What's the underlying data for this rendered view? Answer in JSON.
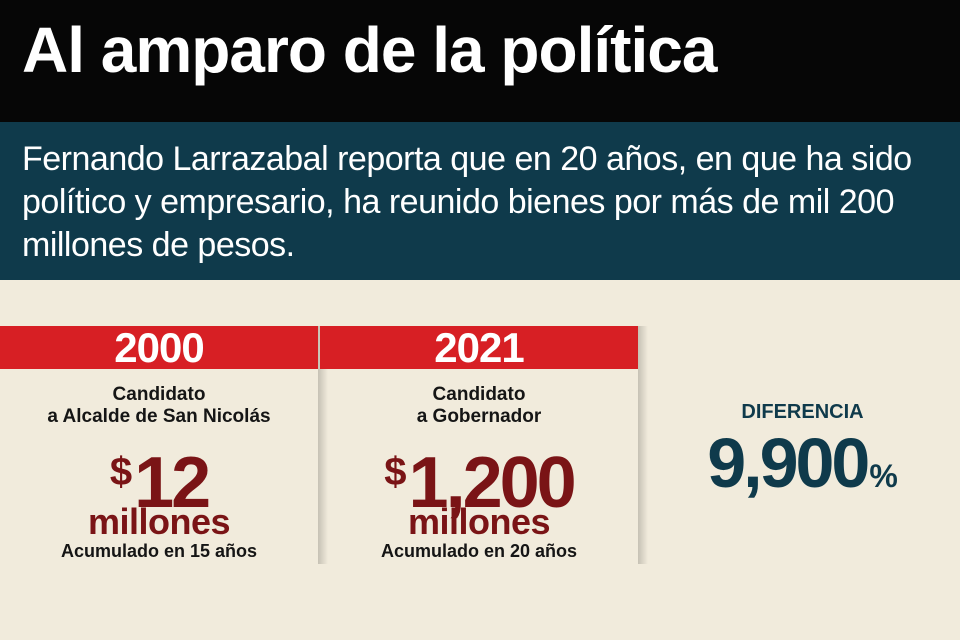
{
  "header": {
    "title": "Al amparo de la política",
    "subtitle": "Fernando Larrazabal reporta que en 20 años, en que ha sido político y empresario, ha reunido bienes por más de mil 200 millones de pesos."
  },
  "columns": [
    {
      "year": "2000",
      "role_line1": "Candidato",
      "role_line2": "a Alcalde de San Nicolás",
      "currency": "$",
      "amount": "12",
      "unit": "millones",
      "accumulated": "Acumulado en 15 años"
    },
    {
      "year": "2021",
      "role_line1": "Candidato",
      "role_line2": "a Gobernador",
      "currency": "$",
      "amount": "1,200",
      "unit": "millones",
      "accumulated": "Acumulado en 20 años"
    }
  ],
  "difference": {
    "label": "DIFERENCIA",
    "value": "9,900",
    "unit": "%"
  },
  "colors": {
    "title_bg": "#060606",
    "subtitle_bg": "#0f3a4b",
    "year_bg": "#d71f24",
    "amount_color": "#7a1416",
    "page_bg": "#f1ebdc"
  }
}
